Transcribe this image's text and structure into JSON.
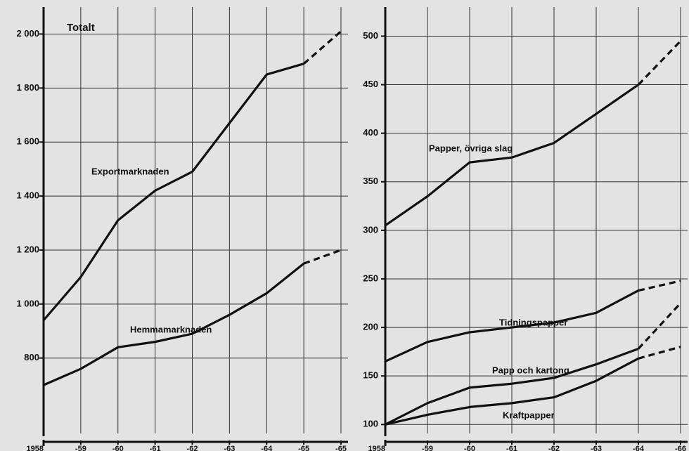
{
  "chart_data": [
    {
      "type": "line",
      "title": "Totalt",
      "categories": [
        "1958",
        "-59",
        "-60",
        "-61",
        "-62",
        "-63",
        "-64",
        "-65",
        "-65"
      ],
      "series": [
        {
          "name": "Exportmarknaden",
          "color": "#111111",
          "values": [
            940,
            1100,
            1310,
            1420,
            1490,
            1670,
            1850,
            1890,
            2010
          ]
        },
        {
          "name": "Hemmamarknaden",
          "color": "#111111",
          "values": [
            700,
            760,
            840,
            860,
            890,
            960,
            1040,
            1150,
            1200
          ]
        }
      ],
      "dashed_from": 7,
      "ylim": [
        500,
        2100
      ],
      "yticks": [
        800,
        {
          "value": 1000,
          "label": "1 000"
        },
        {
          "value": 1200,
          "label": "1 200"
        },
        {
          "value": 1400,
          "label": "1 400"
        },
        {
          "value": 1600,
          "label": "1 600"
        },
        {
          "value": 1800,
          "label": "1 800"
        },
        {
          "value": 2000,
          "label": "2 000"
        }
      ],
      "grid": true
    },
    {
      "type": "line",
      "categories": [
        "1958",
        "-59",
        "-60",
        "-61",
        "-62",
        "-63",
        "-64",
        "-66"
      ],
      "series": [
        {
          "name": "Papper, övriga slag",
          "color": "#111111",
          "values": [
            305,
            335,
            370,
            375,
            390,
            420,
            450,
            495
          ]
        },
        {
          "name": "Tidningspapper",
          "color": "#111111",
          "values": [
            165,
            185,
            195,
            200,
            205,
            215,
            238,
            248
          ]
        },
        {
          "name": "Papp och kartong",
          "color": "#111111",
          "values": [
            100,
            122,
            138,
            142,
            148,
            162,
            178,
            225
          ]
        },
        {
          "name": "Kraftpapper",
          "color": "#111111",
          "values": [
            100,
            110,
            118,
            122,
            128,
            145,
            168,
            180
          ]
        }
      ],
      "dashed_from": 6,
      "ylim": [
        85,
        530
      ],
      "yticks": [
        100,
        150,
        200,
        250,
        300,
        350,
        400,
        450,
        500
      ],
      "grid": true
    }
  ]
}
